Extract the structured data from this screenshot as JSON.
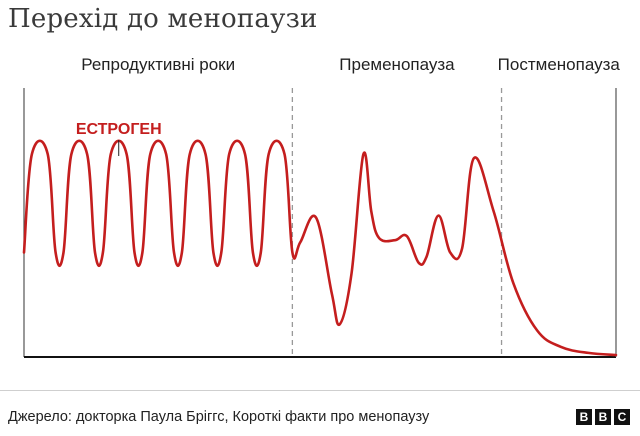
{
  "title": "Перехід до менопаузи",
  "chart_data": {
    "type": "line",
    "series": [
      {
        "name": "ЕСТРОГЕН",
        "color": "#c41e1e",
        "points": [
          [
            0,
            0.5
          ],
          [
            0.2,
            0.98
          ],
          [
            0.6,
            0.98
          ],
          [
            0.8,
            0.5
          ],
          [
            1.0,
            0.5
          ],
          [
            1.2,
            0.98
          ],
          [
            1.6,
            0.98
          ],
          [
            1.8,
            0.5
          ],
          [
            2.0,
            0.5
          ],
          [
            2.2,
            0.98
          ],
          [
            2.6,
            0.98
          ],
          [
            2.8,
            0.5
          ],
          [
            3.0,
            0.5
          ],
          [
            3.2,
            0.98
          ],
          [
            3.6,
            0.98
          ],
          [
            3.8,
            0.5
          ],
          [
            4.0,
            0.5
          ],
          [
            4.2,
            0.98
          ],
          [
            4.6,
            0.98
          ],
          [
            4.8,
            0.5
          ],
          [
            5.0,
            0.5
          ],
          [
            5.2,
            0.98
          ],
          [
            5.6,
            0.98
          ],
          [
            5.8,
            0.5
          ],
          [
            6.0,
            0.5
          ],
          [
            6.2,
            0.98
          ],
          [
            6.6,
            0.98
          ],
          [
            6.8,
            0.5
          ],
          [
            7.0,
            0.55
          ],
          [
            7.4,
            0.67
          ],
          [
            7.8,
            0.3
          ],
          [
            8.0,
            0.15
          ],
          [
            8.3,
            0.4
          ],
          [
            8.6,
            0.98
          ],
          [
            8.8,
            0.7
          ],
          [
            9.0,
            0.57
          ],
          [
            9.4,
            0.56
          ],
          [
            9.7,
            0.58
          ],
          [
            10.0,
            0.45
          ],
          [
            10.2,
            0.48
          ],
          [
            10.5,
            0.68
          ],
          [
            10.8,
            0.5
          ],
          [
            11.1,
            0.52
          ],
          [
            11.4,
            0.96
          ],
          [
            11.9,
            0.7
          ],
          [
            12.4,
            0.35
          ],
          [
            13.0,
            0.12
          ],
          [
            13.6,
            0.04
          ],
          [
            14.3,
            0.01
          ],
          [
            15.0,
            0.0
          ]
        ]
      }
    ],
    "phases": [
      {
        "label": "Репродуктивні роки",
        "x_start": 0,
        "x_end": 6.8
      },
      {
        "label": "Пременопауза",
        "x_start": 6.8,
        "x_end": 12.1
      },
      {
        "label": "Постменопауза",
        "x_start": 12.1,
        "x_end": 15.0
      }
    ],
    "dividers": [
      6.8,
      12.1
    ],
    "xlim": [
      0,
      15
    ],
    "ylim": [
      0,
      1
    ],
    "annotations": [
      {
        "text": "ЕСТРОГЕН",
        "target_x": 2.4
      }
    ],
    "grid": false,
    "xlabel": "",
    "ylabel": ""
  },
  "footer": {
    "source": "Джерело: докторка Паула Бріггс, Короткі факти про менопаузу",
    "logo_letters": [
      "B",
      "B",
      "C"
    ]
  }
}
